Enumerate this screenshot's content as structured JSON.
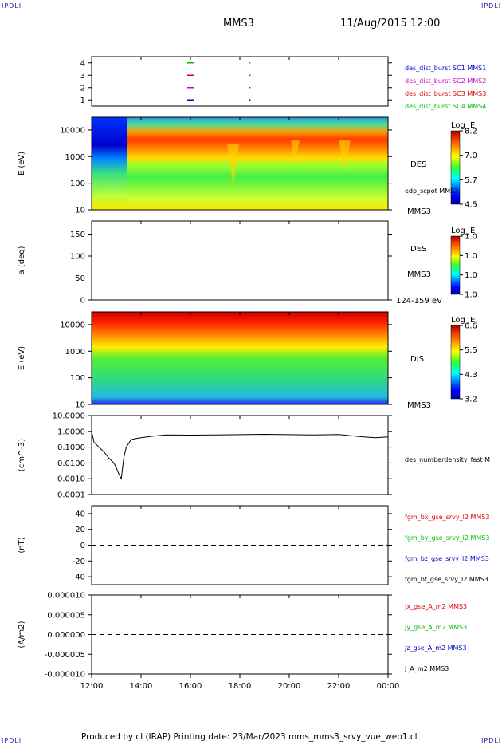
{
  "corner_tl": "IPDLI",
  "corner_tr": "IPDLI",
  "corner_bl": "IPDLI",
  "corner_br": "IPDLI",
  "header": {
    "mission": "MMS3",
    "datetime": "11/Aug/2015 12:00"
  },
  "footer": "Produced by cl (IRAP)   Printing date: 23/Mar/2023   mms_mms3_srvy_vue_web1.cl",
  "time_axis": {
    "ticks": [
      "12:00",
      "14:00",
      "16:00",
      "18:00",
      "20:00",
      "22:00",
      "00:00"
    ],
    "range_hours": [
      12,
      24
    ]
  },
  "colors": {
    "mms1": "#0000cc",
    "mms2": "#cc00cc",
    "mms3": "#dd0000",
    "mms4": "#00bb00"
  },
  "chart_data": [
    {
      "type": "scatter",
      "panel": "burst availability",
      "yticks": [
        "4",
        "3",
        "2",
        "1"
      ],
      "ylim": [
        0.5,
        4.5
      ],
      "legend": [
        {
          "label": "des_dist_burst SC1 MMS1",
          "color": "#0000cc"
        },
        {
          "label": "des_dist_burst SC2 MMS2",
          "color": "#cc00cc"
        },
        {
          "label": "des_dist_burst SC3 MMS3",
          "color": "#dd0000"
        },
        {
          "label": "des_dist_burst SC4 MMS4",
          "color": "#00bb00"
        }
      ],
      "series": [
        {
          "sc": 4,
          "x": [
            16.0,
            18.4
          ],
          "color": "#00bb00"
        },
        {
          "sc": 3,
          "x": [
            16.0,
            18.4
          ],
          "color": "#dd0000"
        },
        {
          "sc": 2,
          "x": [
            16.0,
            18.4
          ],
          "color": "#cc00cc"
        },
        {
          "sc": 1,
          "x": [
            16.0,
            18.4
          ],
          "color": "#0000cc"
        }
      ]
    },
    {
      "type": "heatmap",
      "panel": "DES energy spectrogram",
      "ylabel": "E (eV)",
      "ylog": true,
      "ylim": [
        10,
        30000
      ],
      "yticks": [
        "10000",
        "1000",
        "100",
        "10"
      ],
      "instrument": "DES",
      "spacecraft": "MMS3",
      "overlay_label": "edp_scpot MMS3",
      "colorbar": {
        "title": "Log JE",
        "ticks": [
          "8.2",
          "7.0",
          "5.7",
          "4.5"
        ]
      }
    },
    {
      "type": "heatmap",
      "panel": "DES pitch angle",
      "ylabel": "a (deg)",
      "ylim": [
        0,
        180
      ],
      "yticks": [
        "150",
        "100",
        "50",
        "0"
      ],
      "instrument": "DES",
      "spacecraft": "MMS3",
      "energy_band": "124-159 eV",
      "colorbar": {
        "title": "Log JE",
        "ticks": [
          "1.0",
          "1.0",
          "1.0",
          "1.0"
        ]
      }
    },
    {
      "type": "heatmap",
      "panel": "DIS energy spectrogram",
      "ylabel": "E (eV)",
      "ylog": true,
      "ylim": [
        10,
        30000
      ],
      "yticks": [
        "10000",
        "1000",
        "100",
        "10"
      ],
      "instrument": "DIS",
      "spacecraft": "MMS3",
      "colorbar": {
        "title": "Log JE",
        "ticks": [
          "6.6",
          "5.5",
          "4.3",
          "3.2"
        ]
      }
    },
    {
      "type": "line",
      "panel": "density",
      "ylabel": "(cm^-3)",
      "ylog": true,
      "ylim": [
        0.0001,
        10
      ],
      "yticks": [
        "10.0000",
        "1.0000",
        "0.1000",
        "0.0100",
        "0.0010",
        "0.0001"
      ],
      "series_label": "des_numberdensity_fast M",
      "x": [
        12.0,
        12.1,
        12.3,
        12.5,
        12.7,
        12.9,
        13.0,
        13.1,
        13.2,
        13.3,
        13.4,
        13.6,
        13.8,
        14.0,
        14.5,
        15.0,
        16.0,
        17.0,
        18.0,
        19.0,
        20.0,
        21.0,
        22.0,
        23.0,
        23.5,
        24.0
      ],
      "y": [
        1.0,
        0.2,
        0.1,
        0.05,
        0.02,
        0.01,
        0.005,
        0.002,
        0.001,
        0.02,
        0.1,
        0.3,
        0.35,
        0.4,
        0.5,
        0.6,
        0.58,
        0.6,
        0.62,
        0.65,
        0.62,
        0.6,
        0.63,
        0.45,
        0.4,
        0.45
      ]
    },
    {
      "type": "line",
      "panel": "magnetic field",
      "ylabel": "(nT)",
      "ylim": [
        -50,
        50
      ],
      "yticks": [
        "40",
        "20",
        "0",
        "-20",
        "-40"
      ],
      "legend": [
        {
          "label": "fgm_bx_gse_srvy_l2 MMS3",
          "color": "#dd0000"
        },
        {
          "label": "fgm_by_gse_srvy_l2 MMS3",
          "color": "#00bb00"
        },
        {
          "label": "fgm_bz_gse_srvy_l2 MMS3",
          "color": "#0000cc"
        },
        {
          "label": "fgm_bt_gse_srvy_l2 MMS3",
          "color": "#000000"
        }
      ]
    },
    {
      "type": "line",
      "panel": "current density",
      "ylabel": "(A/m2)",
      "ylim": [
        -1e-05,
        1e-05
      ],
      "yticks": [
        "0.000010",
        "0.000005",
        "0.000000",
        "-0.000005",
        "-0.000010"
      ],
      "legend": [
        {
          "label": "Jx_gse_A_m2 MMS3",
          "color": "#dd0000"
        },
        {
          "label": "Jy_gse_A_m2 MMS3",
          "color": "#00bb00"
        },
        {
          "label": "Jz_gse_A_m2 MMS3",
          "color": "#0000cc"
        },
        {
          "label": "J_A_m2 MMS3",
          "color": "#000000"
        }
      ]
    }
  ]
}
